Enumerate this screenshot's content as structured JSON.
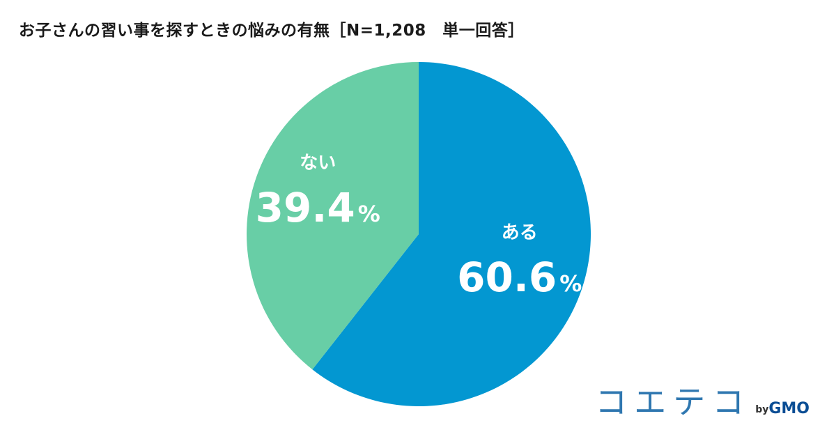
{
  "title": "お子さんの習い事を探すときの悩みの有無［N=1,208　単一回答］",
  "chart_data": {
    "type": "pie",
    "title": "お子さんの習い事を探すときの悩みの有無［N=1,208　単一回答］",
    "slices": [
      {
        "label": "ある",
        "value": 60.6,
        "value_text": "60.6",
        "color": "#0397d1"
      },
      {
        "label": "ない",
        "value": 39.4,
        "value_text": "39.4",
        "color": "#68cea6"
      }
    ],
    "percent_sign": "%",
    "start": "12 o'clock",
    "direction": "clockwise"
  },
  "logo": {
    "word": "コエテコ",
    "by": "by",
    "brand": "GMO",
    "color": "#2f77b0"
  }
}
